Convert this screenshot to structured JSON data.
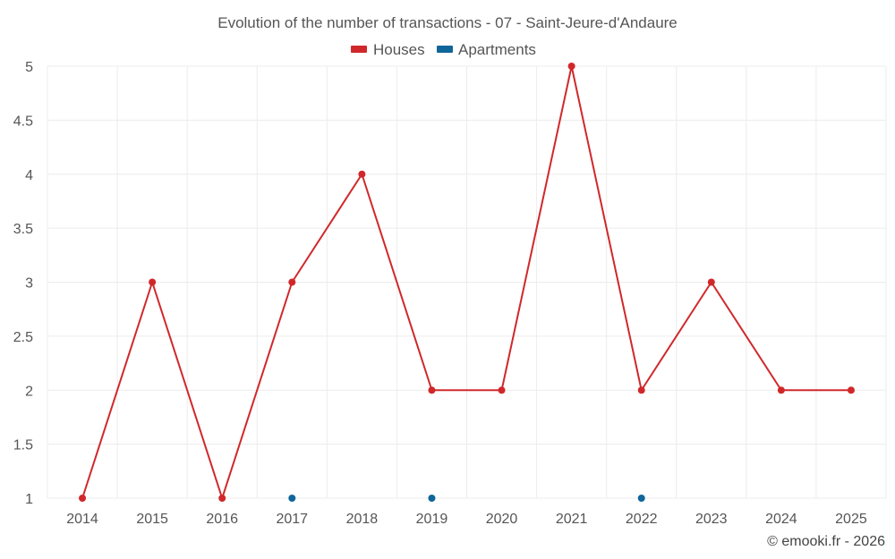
{
  "chart_data": {
    "type": "line",
    "title": "Evolution of the number of transactions - 07 - Saint-Jeure-d'Andaure",
    "xlabel": "",
    "ylabel": "",
    "categories": [
      "2014",
      "2015",
      "2016",
      "2017",
      "2018",
      "2019",
      "2020",
      "2021",
      "2022",
      "2023",
      "2024",
      "2025"
    ],
    "ylim": [
      1,
      5
    ],
    "yticks": [
      1,
      1.5,
      2,
      2.5,
      3,
      3.5,
      4,
      4.5,
      5
    ],
    "ytick_labels": [
      "1",
      "1.5",
      "2",
      "2.5",
      "3",
      "3.5",
      "4",
      "4.5",
      "5"
    ],
    "grid": true,
    "legend_position": "top-center",
    "series": [
      {
        "name": "Houses",
        "color": "#d0282a",
        "mode": "line+markers",
        "values": [
          1,
          3,
          1,
          3,
          4,
          2,
          2,
          5,
          2,
          3,
          2,
          2
        ]
      },
      {
        "name": "Apartments",
        "color": "#0f6699",
        "mode": "markers",
        "values": [
          null,
          null,
          null,
          1,
          null,
          1,
          null,
          null,
          1,
          null,
          null,
          null
        ]
      }
    ]
  },
  "credit": "© emooki.fr - 2026"
}
